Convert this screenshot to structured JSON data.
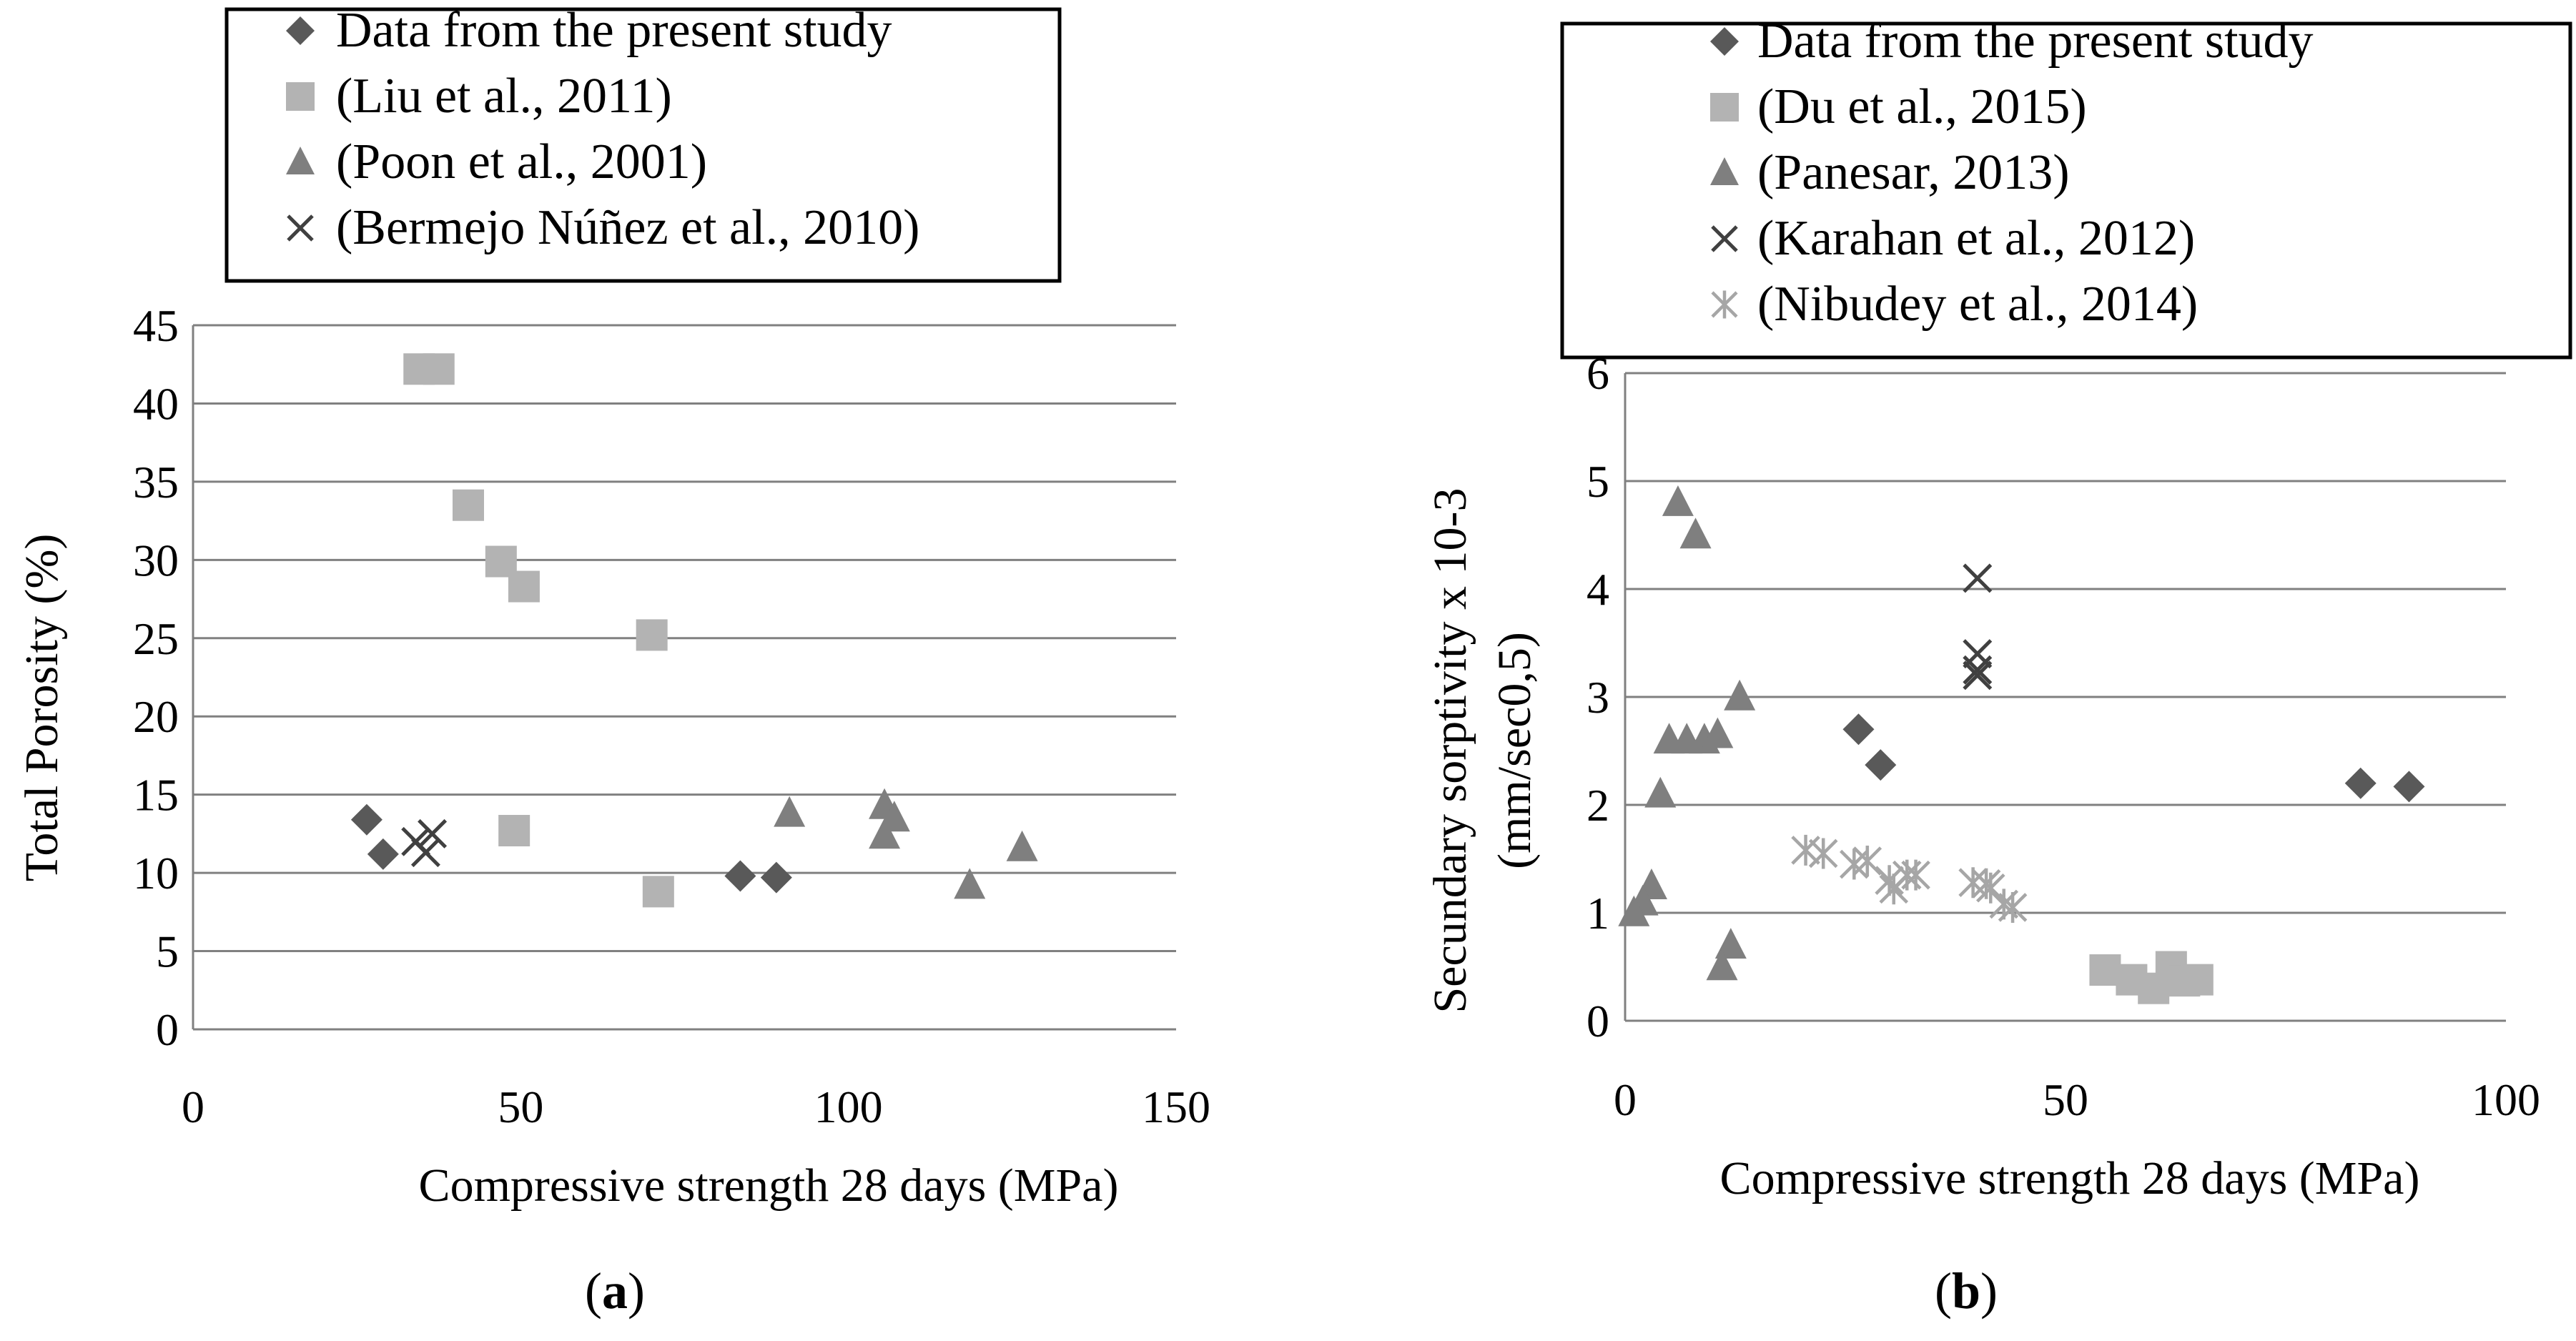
{
  "chart_data": [
    {
      "type": "scatter",
      "panel": "a",
      "caption_open": "(",
      "caption_letter": "a",
      "caption_close": ")",
      "xlabel": "Compressive strength 28 days (MPa)",
      "ylabel": "Total Porosity (%)",
      "xlim": [
        0,
        150
      ],
      "ylim": [
        0,
        45
      ],
      "xticks": [
        "0",
        "50",
        "100",
        "150"
      ],
      "yticks": [
        "0",
        "5",
        "10",
        "15",
        "20",
        "25",
        "30",
        "35",
        "40",
        "45"
      ],
      "grid": true,
      "legend_position": "top",
      "series": [
        {
          "name": "Data from the present study",
          "marker": "diamond",
          "color": "#595959",
          "points": [
            [
              26.5,
              13.4
            ],
            [
              29,
              11.2
            ],
            [
              83.5,
              9.8
            ],
            [
              89,
              9.7
            ]
          ]
        },
        {
          "name": "(Liu et al., 2011)",
          "marker": "square",
          "color": "#b3b3b3",
          "points": [
            [
              34.5,
              42.2
            ],
            [
              37.5,
              42.2
            ],
            [
              42,
              33.5
            ],
            [
              47,
              29.9
            ],
            [
              50.5,
              28.3
            ],
            [
              70,
              25.2
            ],
            [
              49,
              12.7
            ],
            [
              71,
              8.8
            ]
          ]
        },
        {
          "name": "(Poon et al., 2001)",
          "marker": "triangle",
          "color": "#7f7f7f",
          "points": [
            [
              91,
              13.8
            ],
            [
              105.5,
              14.3
            ],
            [
              107,
              13.5
            ],
            [
              105.5,
              12.4
            ],
            [
              126.5,
              11.6
            ],
            [
              118.5,
              9.2
            ]
          ]
        },
        {
          "name": "(Bermejo Núñez et al., 2010)",
          "marker": "x",
          "color": "#404040",
          "points": [
            [
              34,
              12
            ],
            [
              36.5,
              12.5
            ],
            [
              35.5,
              11.3
            ]
          ]
        }
      ]
    },
    {
      "type": "scatter",
      "panel": "b",
      "caption_open": "(",
      "caption_letter": "b",
      "caption_close": ")",
      "xlabel": "Compressive strength 28 days (MPa)",
      "ylabel_line1": "Secundary sorptivity x 10-3",
      "ylabel_line2": "(mm/sec0,5)",
      "xlim": [
        0,
        100
      ],
      "ylim": [
        0,
        6
      ],
      "xticks": [
        "0",
        "50",
        "100"
      ],
      "yticks": [
        "0",
        "1",
        "2",
        "3",
        "4",
        "5",
        "6"
      ],
      "grid": true,
      "legend_position": "top",
      "series": [
        {
          "name": "Data from the present study",
          "marker": "diamond",
          "color": "#595959",
          "points": [
            [
              26.5,
              2.7
            ],
            [
              29,
              2.37
            ],
            [
              83.5,
              2.2
            ],
            [
              89,
              2.17
            ]
          ]
        },
        {
          "name": "(Du et al., 2015)",
          "marker": "square",
          "color": "#b3b3b3",
          "points": [
            [
              54.5,
              0.47
            ],
            [
              57.5,
              0.38
            ],
            [
              60,
              0.3
            ],
            [
              62,
              0.5
            ],
            [
              63.5,
              0.37
            ],
            [
              65,
              0.38
            ]
          ]
        },
        {
          "name": "(Panesar, 2013)",
          "marker": "triangle",
          "color": "#7f7f7f",
          "points": [
            [
              6,
              4.8
            ],
            [
              8,
              4.5
            ],
            [
              13,
              3.0
            ],
            [
              5,
              2.6
            ],
            [
              7,
              2.6
            ],
            [
              9,
              2.6
            ],
            [
              10.5,
              2.65
            ],
            [
              4,
              2.1
            ],
            [
              3,
              1.25
            ],
            [
              2,
              1.1
            ],
            [
              1,
              1.0
            ],
            [
              12,
              0.7
            ],
            [
              11,
              0.5
            ]
          ]
        },
        {
          "name": "(Karahan et al., 2012)",
          "marker": "x",
          "color": "#404040",
          "points": [
            [
              40,
              4.1
            ],
            [
              40,
              3.4
            ],
            [
              40,
              3.25
            ],
            [
              40,
              3.2
            ]
          ]
        },
        {
          "name": "(Nibudey et al., 2014)",
          "marker": "asterisk",
          "color": "#a6a6a6",
          "points": [
            [
              20.5,
              1.58
            ],
            [
              22.5,
              1.55
            ],
            [
              26,
              1.45
            ],
            [
              27.5,
              1.48
            ],
            [
              30,
              1.3
            ],
            [
              30.5,
              1.22
            ],
            [
              32,
              1.35
            ],
            [
              33,
              1.35
            ],
            [
              39.5,
              1.28
            ],
            [
              41,
              1.27
            ],
            [
              41.5,
              1.23
            ],
            [
              43,
              1.08
            ],
            [
              44,
              1.05
            ]
          ]
        }
      ]
    }
  ]
}
